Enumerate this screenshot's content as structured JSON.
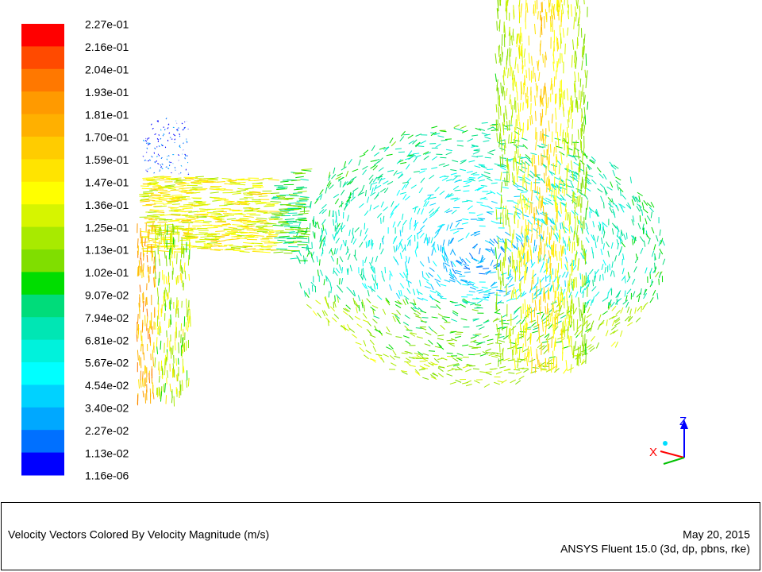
{
  "colorbar": {
    "labels": [
      "2.27e-01",
      "2.16e-01",
      "2.04e-01",
      "1.93e-01",
      "1.81e-01",
      "1.70e-01",
      "1.59e-01",
      "1.47e-01",
      "1.36e-01",
      "1.25e-01",
      "1.13e-01",
      "1.02e-01",
      "9.07e-02",
      "7.94e-02",
      "6.81e-02",
      "5.67e-02",
      "4.54e-02",
      "3.40e-02",
      "2.27e-02",
      "1.13e-02",
      "1.16e-06"
    ],
    "colors": [
      "#ff0000",
      "#ff4a00",
      "#ff7800",
      "#ff9a00",
      "#ffb000",
      "#ffcc00",
      "#ffe400",
      "#ffff00",
      "#d6f500",
      "#a8ea00",
      "#80de00",
      "#00dd00",
      "#00dc7a",
      "#00e6b4",
      "#00f2dc",
      "#00ffff",
      "#00d2ff",
      "#00a8ff",
      "#0070ff",
      "#0000ff"
    ]
  },
  "axes": {
    "z": "Z",
    "x": "X"
  },
  "footer": {
    "title": "Velocity Vectors Colored By Velocity Magnitude (m/s)",
    "date": "May 20, 2015",
    "software": "ANSYS Fluent 15.0 (3d, dp, pbns, rke)"
  }
}
